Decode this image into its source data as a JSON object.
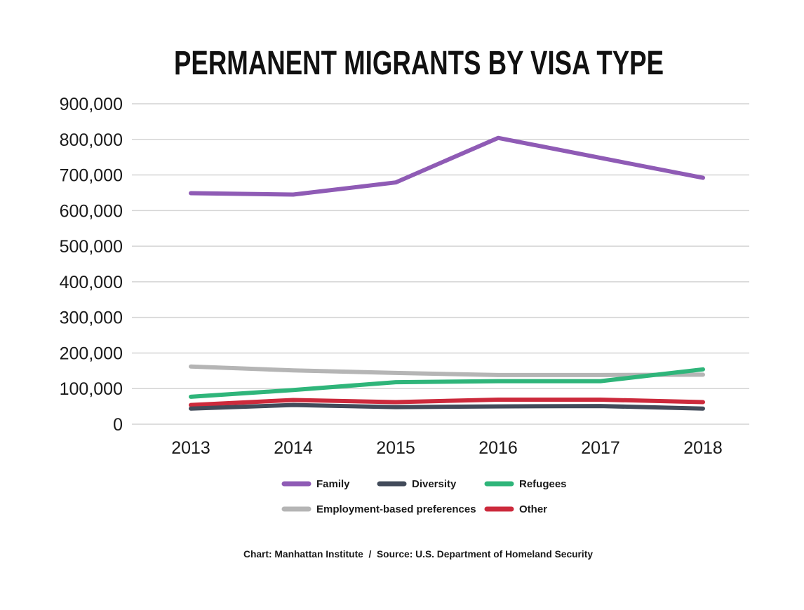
{
  "chart_data": {
    "type": "line",
    "title": "PERMANENT MIGRANTS BY VISA TYPE",
    "categories": [
      "2013",
      "2014",
      "2015",
      "2016",
      "2017",
      "2018"
    ],
    "y_ticks": [
      "900,000",
      "800,000",
      "700,000",
      "600,000",
      "500,000",
      "400,000",
      "300,000",
      "200,000",
      "100,000",
      "0"
    ],
    "ylim": [
      0,
      900000
    ],
    "grid": true,
    "legend_position": "bottom",
    "series": [
      {
        "name": "Family",
        "color": "#8f5bb5",
        "values": [
          649000,
          645000,
          679000,
          804000,
          748000,
          692000
        ]
      },
      {
        "name": "Diversity",
        "color": "#424b5a",
        "values": [
          44000,
          54000,
          48000,
          50000,
          51000,
          44000
        ]
      },
      {
        "name": "Refugees",
        "color": "#2fb57a",
        "values": [
          77000,
          96000,
          118000,
          121000,
          121000,
          154000
        ]
      },
      {
        "name": "Employment-based preferences",
        "color": "#b5b5b5",
        "values": [
          162000,
          151000,
          144000,
          138000,
          138000,
          139000
        ]
      },
      {
        "name": "Other",
        "color": "#cc2a3c",
        "values": [
          54000,
          68000,
          62000,
          69000,
          69000,
          62000
        ]
      }
    ],
    "footer": "Chart: Manhattan Institute  /  Source: U.S. Department of Homeland Security"
  }
}
